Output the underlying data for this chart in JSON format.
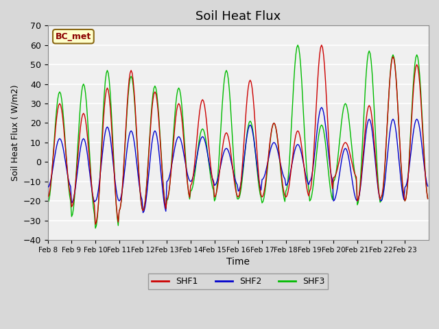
{
  "title": "Soil Heat Flux",
  "xlabel": "Time",
  "ylabel": "Soil Heat Flux ( W/m2)",
  "ylim": [
    -40,
    70
  ],
  "annotation": "BC_met",
  "fig_bg_color": "#d8d8d8",
  "plot_bg_color": "#f0f0f0",
  "line_colors": {
    "SHF1": "#cc0000",
    "SHF2": "#0000cc",
    "SHF3": "#00bb00"
  },
  "legend_labels": [
    "SHF1",
    "SHF2",
    "SHF3"
  ],
  "x_tick_labels": [
    "Feb 8",
    "Feb 9",
    "Feb 10",
    "Feb 11",
    "Feb 12",
    "Feb 13",
    "Feb 14",
    "Feb 15",
    "Feb 16",
    "Feb 17",
    "Feb 18",
    "Feb 19",
    "Feb 20",
    "Feb 21",
    "Feb 22",
    "Feb 23"
  ],
  "yticks": [
    -40,
    -30,
    -20,
    -10,
    0,
    10,
    20,
    30,
    40,
    50,
    60,
    70
  ],
  "shf1_peaks": [
    30,
    25,
    38,
    47,
    36,
    30,
    32,
    15,
    42,
    20,
    16,
    60,
    10,
    29,
    54,
    50
  ],
  "shf1_troughs": [
    -18,
    -23,
    -32,
    -25,
    -25,
    -19,
    -12,
    -18,
    -18,
    -18,
    -18,
    -15,
    -8,
    -20,
    -18,
    -20
  ],
  "shf2_peaks": [
    12,
    12,
    18,
    16,
    16,
    13,
    13,
    7,
    19,
    10,
    9,
    28,
    7,
    22,
    22,
    22
  ],
  "shf2_troughs": [
    -13,
    -21,
    -20,
    -20,
    -26,
    -10,
    -10,
    -12,
    -15,
    -9,
    -12,
    -10,
    -20,
    -20,
    -20,
    -13
  ],
  "shf3_peaks": [
    36,
    40,
    47,
    44,
    39,
    38,
    17,
    47,
    21,
    20,
    60,
    19,
    30,
    57,
    55,
    55
  ],
  "shf3_troughs": [
    -21,
    -28,
    -34,
    -25,
    -25,
    -20,
    -15,
    -20,
    -19,
    -21,
    -15,
    -20,
    -10,
    -22,
    -20,
    -20
  ]
}
